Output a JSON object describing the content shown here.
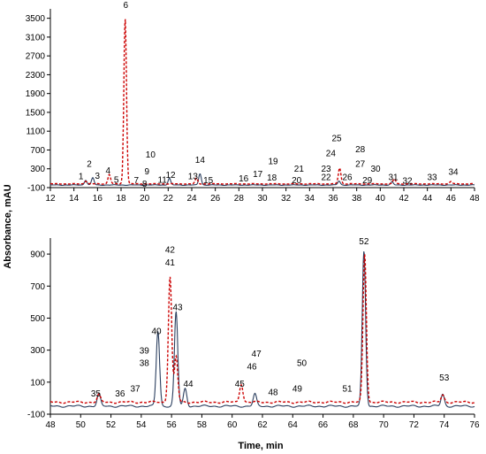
{
  "chart_data": {
    "type": "line",
    "ylabel": "Absorbance, mAU",
    "xlabel": "Time, min",
    "colors": {
      "solid": "#2b3f5f",
      "dashed": "#cc0000"
    },
    "panels": [
      {
        "xlim": [
          12,
          48
        ],
        "ylim": [
          -100,
          3700
        ],
        "xticks": [
          12,
          14,
          16,
          18,
          20,
          22,
          24,
          26,
          28,
          30,
          32,
          34,
          36,
          38,
          40,
          42,
          44,
          46,
          48
        ],
        "yticks": [
          -100,
          300,
          700,
          1100,
          1500,
          1900,
          2300,
          2700,
          3100,
          3500
        ],
        "series": [
          {
            "style": "solid",
            "baseline": -45,
            "peaks": [
              [
                15.0,
                60
              ],
              [
                15.6,
                110
              ],
              [
                22.1,
                100
              ],
              [
                24.7,
                200
              ],
              [
                36.5,
                40
              ],
              [
                41.0,
                20
              ]
            ]
          },
          {
            "style": "dashed",
            "baseline": -20,
            "peaks": [
              [
                15.0,
                40
              ],
              [
                17.0,
                180
              ],
              [
                18.35,
                3500
              ],
              [
                24.4,
                100
              ],
              [
                36.55,
                320
              ],
              [
                41.2,
                90
              ],
              [
                46.0,
                30
              ]
            ]
          }
        ],
        "peak_labels": [
          {
            "n": "1",
            "x": 14.6,
            "y": 80
          },
          {
            "n": "2",
            "x": 15.3,
            "y": 340
          },
          {
            "n": "3",
            "x": 16.0,
            "y": 90
          },
          {
            "n": "4",
            "x": 16.9,
            "y": 200
          },
          {
            "n": "5",
            "x": 17.6,
            "y": 0
          },
          {
            "n": "6",
            "x": 18.4,
            "y": 3720
          },
          {
            "n": "7",
            "x": 19.3,
            "y": -5
          },
          {
            "n": "8",
            "x": 20.0,
            "y": -80
          },
          {
            "n": "9",
            "x": 20.2,
            "y": 180
          },
          {
            "n": "10",
            "x": 20.5,
            "y": 540
          },
          {
            "n": "11",
            "x": 21.5,
            "y": 0
          },
          {
            "n": "12",
            "x": 22.2,
            "y": 110
          },
          {
            "n": "13",
            "x": 24.1,
            "y": 80
          },
          {
            "n": "14",
            "x": 24.7,
            "y": 430
          },
          {
            "n": "15",
            "x": 25.4,
            "y": -10
          },
          {
            "n": "16",
            "x": 28.4,
            "y": 30
          },
          {
            "n": "17",
            "x": 29.6,
            "y": 130
          },
          {
            "n": "18",
            "x": 30.8,
            "y": 50
          },
          {
            "n": "19",
            "x": 30.9,
            "y": 400
          },
          {
            "n": "20",
            "x": 32.9,
            "y": -5
          },
          {
            "n": "21",
            "x": 33.1,
            "y": 240
          },
          {
            "n": "22",
            "x": 35.4,
            "y": 60
          },
          {
            "n": "23",
            "x": 35.4,
            "y": 240
          },
          {
            "n": "24",
            "x": 35.8,
            "y": 570
          },
          {
            "n": "25",
            "x": 36.3,
            "y": 890
          },
          {
            "n": "26",
            "x": 37.2,
            "y": 60
          },
          {
            "n": "27",
            "x": 38.3,
            "y": 340
          },
          {
            "n": "28",
            "x": 38.3,
            "y": 650
          },
          {
            "n": "29",
            "x": 38.9,
            "y": -5
          },
          {
            "n": "30",
            "x": 39.6,
            "y": 240
          },
          {
            "n": "31",
            "x": 41.1,
            "y": 60
          },
          {
            "n": "32",
            "x": 42.3,
            "y": -20
          },
          {
            "n": "33",
            "x": 44.4,
            "y": 60
          },
          {
            "n": "34",
            "x": 46.2,
            "y": 170
          }
        ]
      },
      {
        "xlim": [
          48,
          76
        ],
        "ylim": [
          -100,
          1000
        ],
        "xticks": [
          48,
          50,
          52,
          54,
          56,
          58,
          60,
          62,
          64,
          66,
          68,
          70,
          72,
          74,
          76
        ],
        "yticks": [
          -100,
          100,
          300,
          500,
          700,
          900
        ],
        "series": [
          {
            "style": "solid",
            "baseline": -50,
            "peaks": [
              [
                51.2,
                25
              ],
              [
                55.1,
                420
              ],
              [
                56.3,
                540
              ],
              [
                56.9,
                60
              ],
              [
                61.5,
                25
              ],
              [
                68.7,
                920
              ],
              [
                73.9,
                25
              ]
            ]
          },
          {
            "style": "dashed",
            "baseline": -25,
            "peaks": [
              [
                51.2,
                20
              ],
              [
                55.9,
                760
              ],
              [
                56.3,
                260
              ],
              [
                60.6,
                90
              ],
              [
                68.75,
                900
              ],
              [
                73.9,
                20
              ]
            ]
          }
        ],
        "peak_labels": [
          {
            "n": "35",
            "x": 51.0,
            "y": 10
          },
          {
            "n": "36",
            "x": 52.6,
            "y": 10
          },
          {
            "n": "37",
            "x": 53.6,
            "y": 40
          },
          {
            "n": "38",
            "x": 54.2,
            "y": 200
          },
          {
            "n": "39",
            "x": 54.2,
            "y": 280
          },
          {
            "n": "40",
            "x": 55.0,
            "y": 400
          },
          {
            "n": "41",
            "x": 55.9,
            "y": 830
          },
          {
            "n": "42",
            "x": 55.9,
            "y": 910
          },
          {
            "n": "43",
            "x": 56.4,
            "y": 550
          },
          {
            "n": "44",
            "x": 57.1,
            "y": 70
          },
          {
            "n": "45",
            "x": 60.5,
            "y": 70
          },
          {
            "n": "46",
            "x": 61.3,
            "y": 180
          },
          {
            "n": "47",
            "x": 61.6,
            "y": 260
          },
          {
            "n": "48",
            "x": 62.7,
            "y": 20
          },
          {
            "n": "49",
            "x": 64.3,
            "y": 40
          },
          {
            "n": "50",
            "x": 64.6,
            "y": 200
          },
          {
            "n": "51",
            "x": 67.6,
            "y": 40
          },
          {
            "n": "52",
            "x": 68.7,
            "y": 960
          },
          {
            "n": "53",
            "x": 74.0,
            "y": 110
          }
        ]
      }
    ]
  }
}
